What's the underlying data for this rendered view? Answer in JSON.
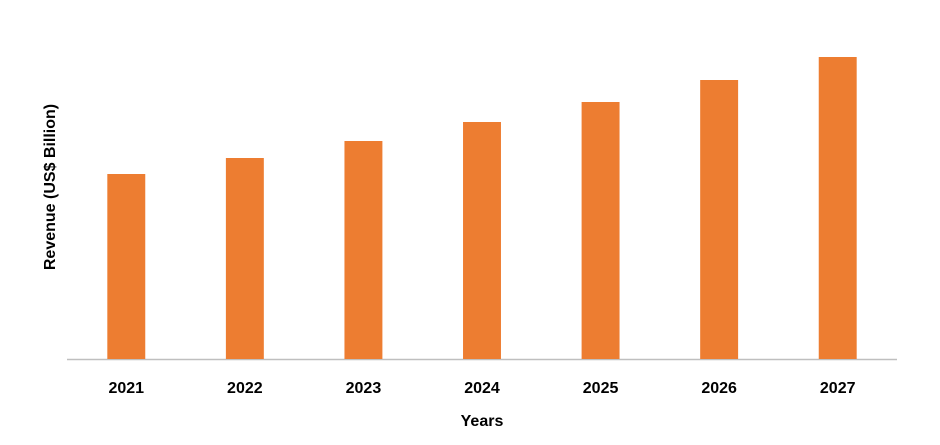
{
  "chart_data": {
    "type": "bar",
    "x_label": "Years",
    "y_label": "Revenue (US$ Billion)",
    "categories": [
      "2021",
      "2022",
      "2023",
      "2024",
      "2025",
      "2026",
      "2027"
    ],
    "values": [
      18.5,
      20.1,
      21.8,
      23.7,
      25.7,
      27.9,
      30.2
    ],
    "color": "#ED7D31",
    "ylim": [
      0,
      33
    ]
  }
}
